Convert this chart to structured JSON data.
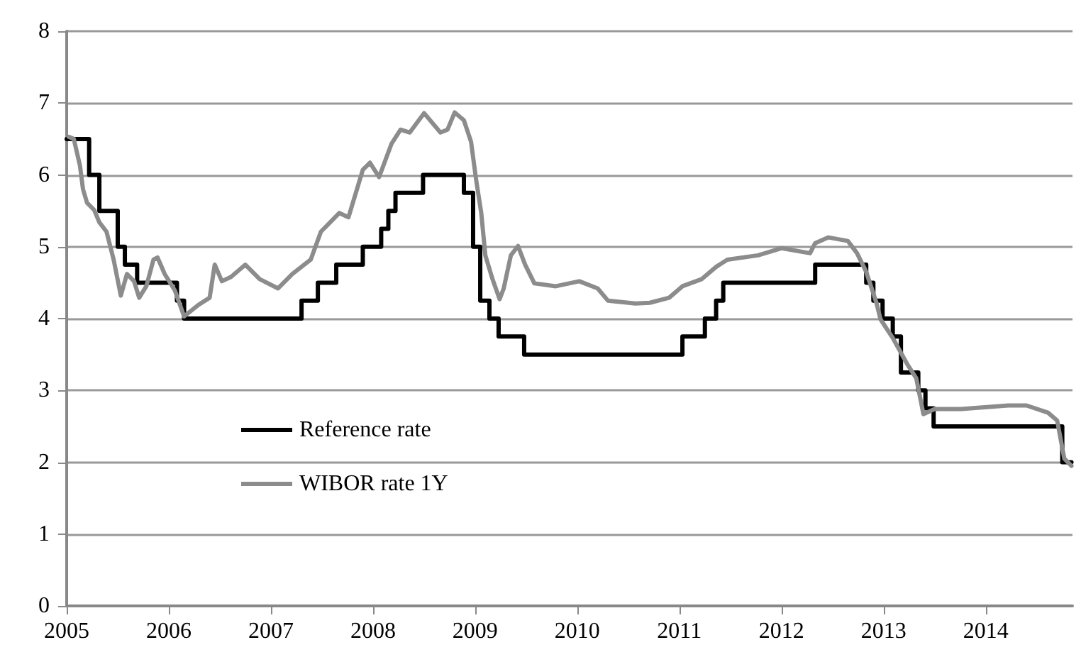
{
  "chart_data": {
    "type": "line",
    "xlim": [
      2005,
      2014.85
    ],
    "xticks": [
      2005,
      2006,
      2007,
      2008,
      2009,
      2010,
      2011,
      2012,
      2013,
      2014
    ],
    "ylim": [
      0,
      8
    ],
    "yticks": [
      0,
      1,
      2,
      3,
      4,
      5,
      6,
      7,
      8
    ],
    "grid": "y",
    "legend": "bottom left",
    "marker": "none",
    "line_style": "solid",
    "series": [
      {
        "name": "Reference rate",
        "type": "step",
        "color": "#000000",
        "x": [
          2005,
          2005.22,
          2005.32,
          2005.5,
          2005.57,
          2005.69,
          2006.08,
          2006.15,
          2007.3,
          2007.46,
          2007.64,
          2007.9,
          2008.08,
          2008.15,
          2008.22,
          2008.49,
          2008.89,
          2008.98,
          2009.05,
          2009.14,
          2009.23,
          2009.48,
          2011.03,
          2011.25,
          2011.36,
          2011.43,
          2012.33,
          2012.83,
          2012.9,
          2012.99,
          2013.09,
          2013.17,
          2013.34,
          2013.41,
          2013.49,
          2014.75,
          2014.84
        ],
        "values": [
          6.5,
          6,
          5.5,
          5,
          4.75,
          4.5,
          4.25,
          4,
          4.25,
          4.5,
          4.75,
          5,
          5.25,
          5.5,
          5.75,
          6,
          5.75,
          5,
          4.25,
          4,
          3.75,
          3.5,
          3.75,
          4,
          4.25,
          4.5,
          4.75,
          4.5,
          4.25,
          4,
          3.75,
          3.25,
          3,
          2.75,
          2.5,
          2,
          2
        ]
      },
      {
        "name": "WIBOR rate 1Y",
        "color": "#8c8c8c",
        "x": [
          2005.02,
          2005.07,
          2005.13,
          2005.16,
          2005.2,
          2005.27,
          2005.32,
          2005.39,
          2005.46,
          2005.53,
          2005.59,
          2005.66,
          2005.71,
          2005.78,
          2005.85,
          2005.89,
          2005.96,
          2006.06,
          2006.15,
          2006.29,
          2006.4,
          2006.45,
          2006.52,
          2006.61,
          2006.75,
          2006.89,
          2007.07,
          2007.21,
          2007.39,
          2007.49,
          2007.58,
          2007.67,
          2007.76,
          2007.9,
          2007.97,
          2008.06,
          2008.18,
          2008.27,
          2008.36,
          2008.5,
          2008.66,
          2008.73,
          2008.8,
          2008.89,
          2008.96,
          2009.01,
          2009.06,
          2009.1,
          2009.17,
          2009.24,
          2009.28,
          2009.35,
          2009.42,
          2009.49,
          2009.58,
          2009.79,
          2010.02,
          2010.2,
          2010.3,
          2010.57,
          2010.71,
          2010.9,
          2011.03,
          2011.22,
          2011.36,
          2011.47,
          2011.77,
          2012,
          2012.28,
          2012.33,
          2012.46,
          2012.65,
          2012.74,
          2012.83,
          2012.93,
          2012.97,
          2013.09,
          2013.23,
          2013.32,
          2013.39,
          2013.5,
          2013.76,
          2014.22,
          2014.4,
          2014.61,
          2014.7,
          2014.77,
          2014.84
        ],
        "values": [
          6.53,
          6.5,
          6.13,
          5.8,
          5.61,
          5.51,
          5.34,
          5.21,
          4.82,
          4.32,
          4.62,
          4.52,
          4.29,
          4.45,
          4.82,
          4.85,
          4.62,
          4.39,
          4.03,
          4.19,
          4.29,
          4.75,
          4.52,
          4.58,
          4.75,
          4.55,
          4.42,
          4.62,
          4.82,
          5.21,
          5.34,
          5.47,
          5.41,
          6.07,
          6.17,
          5.97,
          6.43,
          6.63,
          6.59,
          6.86,
          6.59,
          6.63,
          6.87,
          6.76,
          6.46,
          5.93,
          5.47,
          4.88,
          4.55,
          4.27,
          4.42,
          4.88,
          5.01,
          4.75,
          4.49,
          4.45,
          4.52,
          4.42,
          4.25,
          4.21,
          4.22,
          4.29,
          4.45,
          4.55,
          4.72,
          4.82,
          4.88,
          4.98,
          4.91,
          5.05,
          5.13,
          5.08,
          4.91,
          4.65,
          4.22,
          3.99,
          3.73,
          3.37,
          3.17,
          2.67,
          2.74,
          2.74,
          2.79,
          2.79,
          2.69,
          2.58,
          2.05,
          1.95
        ]
      }
    ]
  }
}
